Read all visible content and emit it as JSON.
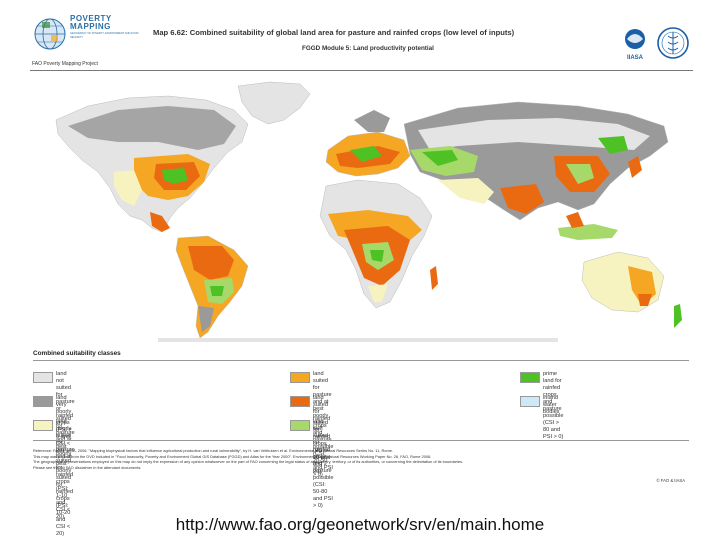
{
  "header": {
    "logo_title_line1": "POVERTY",
    "logo_title_line2": "MAPPING",
    "logo_subtitle": "GEOGRAPHY OF POVERTY, ENVIRONMENT AND FOOD SECURITY",
    "project_label": "FAO Poverty Mapping Project",
    "map_title": "Map 6.62: Combined suitability of global land area for pasture and rainfed crops (low level of inputs)",
    "map_subtitle": "FGGD Module 5: Land productivity potential",
    "iiasa_label": "IIASA"
  },
  "legend": {
    "title": "Combined suitability classes",
    "items": [
      {
        "label": "land not suited for pasture or rainfed\ncrops (PSI = 0 and CSI < 20)",
        "color": "#e4e4e4"
      },
      {
        "label": "land very poorly suited for pasture and at best poorly\nsuited for rainfed crops (PSI: 1-10 and CSI < 20)",
        "color": "#9a9a9a"
      },
      {
        "label": "land poorly suited for pasture and at best poorly suited\nfor rainfed crops (PSI: 10-20 and CSI < 20)",
        "color": "#f7f3c0"
      },
      {
        "label": "land suited for pasture and at best poorly suited\nfor rainfed crops (PSI > 20 and CSI < 20)",
        "color": "#f5a623"
      },
      {
        "label": "land suited for rainfed crops and pasture\npossible (CSI: 20-50 and PSI > 0)",
        "color": "#ea6a12"
      },
      {
        "label": "land well suited for rainfed crops and pasture\npossible (CSI: 50-80 and PSI > 0)",
        "color": "#a6d96a"
      },
      {
        "label": "prime land for rainfed crops and pasture\npossible (CSI > 80 and PSI > 0)",
        "color": "#4ec225"
      },
      {
        "label": "inland water bodies",
        "color": "#cfe8f5"
      }
    ]
  },
  "footer": {
    "lines": [
      "Reference: FAO & IIASA, 2006. \"Mapping biophysical factors that influence agricultural production and rural vulnerability\", by H. van Velthuizen et al. Environmental and Natural Resources Series No. 11, Rome.",
      "This map was printed from the DVD included in \"Food Insecurity, Poverty and Environment Global GIS Database (FGGD) and Atlas for the Year 2000\". Environmental and Natural Resources Working Paper No. 26, FAO, Rome 2006.",
      "The geographical representations employed on this map do not imply the expression of any opinion whatsoever on the part of FAO concerning the legal status of any country, territory, or of its authorities, or concerning the delimitation of its boundaries.",
      "Please see the full FAO disclaimer in the attendant documents."
    ],
    "copyright": "© FAO & IIASA"
  },
  "url": "http://www.fao.org/geonetwork/srv/en/main.home"
}
